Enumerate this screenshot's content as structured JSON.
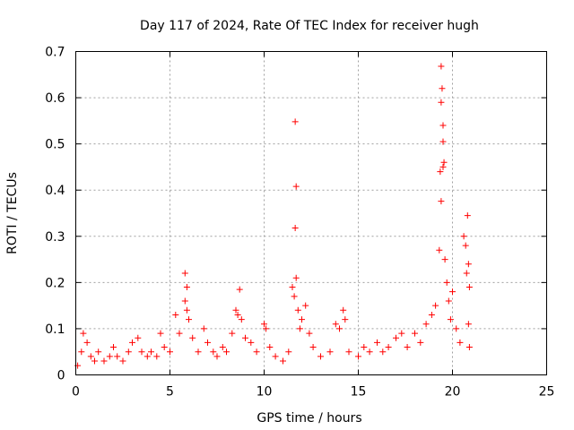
{
  "chart_data": {
    "type": "scatter",
    "title": "Day 117 of 2024, Rate Of TEC Index for receiver hugh",
    "xlabel": "GPS time / hours",
    "ylabel": "ROTI / TECUs",
    "xlim": [
      0,
      25
    ],
    "ylim": [
      0,
      0.7
    ],
    "x_ticks": [
      0,
      5,
      10,
      15,
      20,
      25
    ],
    "y_ticks": [
      0,
      0.1,
      0.2,
      0.3,
      0.4,
      0.5,
      0.6,
      0.7
    ],
    "x_tick_labels": [
      "0",
      "5",
      "10",
      "15",
      "20",
      "25"
    ],
    "y_tick_labels": [
      "0",
      "0.1",
      "0.2",
      "0.3",
      "0.4",
      "0.5",
      "0.6",
      "0.7"
    ],
    "grid": true,
    "marker": "+",
    "color": "#ff0000",
    "series": [
      {
        "points": [
          [
            0.1,
            0.02
          ],
          [
            0.3,
            0.05
          ],
          [
            0.4,
            0.09
          ],
          [
            0.6,
            0.07
          ],
          [
            0.8,
            0.04
          ],
          [
            1.0,
            0.03
          ],
          [
            1.2,
            0.05
          ],
          [
            1.5,
            0.03
          ],
          [
            1.8,
            0.04
          ],
          [
            2.0,
            0.06
          ],
          [
            2.2,
            0.04
          ],
          [
            2.5,
            0.03
          ],
          [
            2.8,
            0.05
          ],
          [
            3.0,
            0.07
          ],
          [
            3.3,
            0.08
          ],
          [
            3.5,
            0.05
          ],
          [
            3.8,
            0.04
          ],
          [
            4.0,
            0.05
          ],
          [
            4.3,
            0.04
          ],
          [
            4.5,
            0.09
          ],
          [
            4.7,
            0.06
          ],
          [
            5.0,
            0.05
          ],
          [
            5.3,
            0.13
          ],
          [
            5.5,
            0.09
          ],
          [
            5.8,
            0.22
          ],
          [
            5.9,
            0.19
          ],
          [
            5.8,
            0.16
          ],
          [
            5.9,
            0.14
          ],
          [
            6.0,
            0.12
          ],
          [
            6.2,
            0.08
          ],
          [
            6.5,
            0.05
          ],
          [
            6.8,
            0.1
          ],
          [
            7.0,
            0.07
          ],
          [
            7.3,
            0.05
          ],
          [
            7.5,
            0.04
          ],
          [
            7.8,
            0.06
          ],
          [
            8.0,
            0.05
          ],
          [
            8.3,
            0.09
          ],
          [
            8.5,
            0.14
          ],
          [
            8.6,
            0.13
          ],
          [
            8.7,
            0.185
          ],
          [
            8.8,
            0.12
          ],
          [
            9.0,
            0.08
          ],
          [
            9.3,
            0.07
          ],
          [
            9.6,
            0.05
          ],
          [
            10.0,
            0.11
          ],
          [
            10.1,
            0.1
          ],
          [
            10.3,
            0.06
          ],
          [
            10.6,
            0.04
          ],
          [
            11.0,
            0.03
          ],
          [
            11.3,
            0.05
          ],
          [
            11.5,
            0.19
          ],
          [
            11.6,
            0.17
          ],
          [
            11.7,
            0.21
          ],
          [
            11.65,
            0.548
          ],
          [
            11.7,
            0.408
          ],
          [
            11.65,
            0.318
          ],
          [
            11.8,
            0.14
          ],
          [
            11.9,
            0.1
          ],
          [
            12.0,
            0.12
          ],
          [
            12.2,
            0.15
          ],
          [
            12.4,
            0.09
          ],
          [
            12.6,
            0.06
          ],
          [
            13.0,
            0.04
          ],
          [
            13.5,
            0.05
          ],
          [
            13.8,
            0.11
          ],
          [
            14.0,
            0.1
          ],
          [
            14.2,
            0.14
          ],
          [
            14.3,
            0.12
          ],
          [
            14.5,
            0.05
          ],
          [
            15.0,
            0.04
          ],
          [
            15.3,
            0.06
          ],
          [
            15.6,
            0.05
          ],
          [
            16.0,
            0.07
          ],
          [
            16.3,
            0.05
          ],
          [
            16.6,
            0.06
          ],
          [
            17.0,
            0.08
          ],
          [
            17.3,
            0.09
          ],
          [
            17.6,
            0.06
          ],
          [
            18.0,
            0.09
          ],
          [
            18.3,
            0.07
          ],
          [
            18.6,
            0.11
          ],
          [
            18.9,
            0.13
          ],
          [
            19.1,
            0.15
          ],
          [
            19.3,
            0.27
          ],
          [
            19.35,
            0.44
          ],
          [
            19.4,
            0.668
          ],
          [
            19.45,
            0.62
          ],
          [
            19.4,
            0.59
          ],
          [
            19.5,
            0.54
          ],
          [
            19.5,
            0.505
          ],
          [
            19.55,
            0.46
          ],
          [
            19.5,
            0.45
          ],
          [
            19.4,
            0.376
          ],
          [
            19.6,
            0.25
          ],
          [
            19.7,
            0.2
          ],
          [
            19.8,
            0.16
          ],
          [
            19.9,
            0.12
          ],
          [
            20.0,
            0.18
          ],
          [
            20.2,
            0.1
          ],
          [
            20.4,
            0.07
          ],
          [
            20.6,
            0.3
          ],
          [
            20.7,
            0.28
          ],
          [
            20.75,
            0.22
          ],
          [
            20.8,
            0.345
          ],
          [
            20.85,
            0.24
          ],
          [
            20.9,
            0.19
          ],
          [
            20.85,
            0.11
          ],
          [
            20.9,
            0.06
          ]
        ]
      }
    ]
  }
}
